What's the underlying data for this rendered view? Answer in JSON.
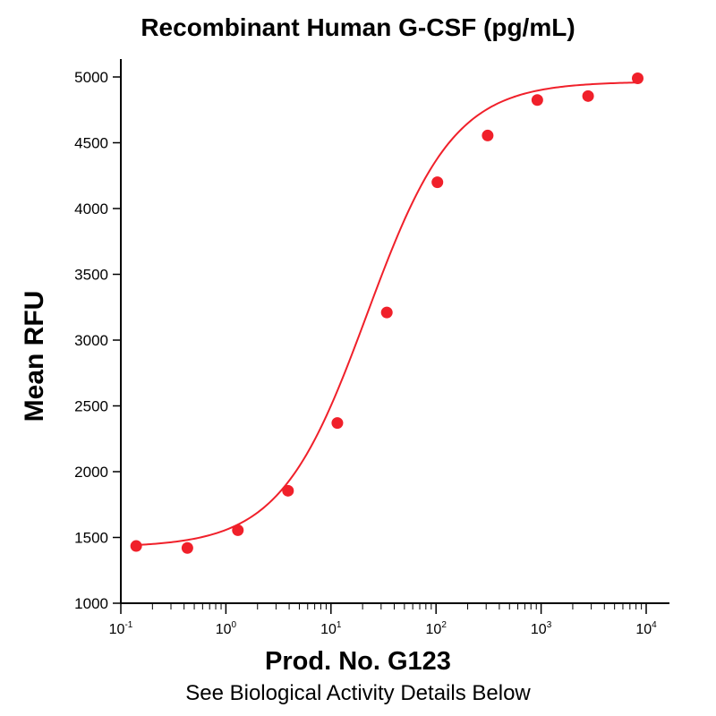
{
  "chart_data": {
    "type": "scatter",
    "title": "Recombinant Human G-CSF (pg/mL)",
    "xlabel": "Prod. No. G123",
    "ylabel": "Mean RFU",
    "subtitle": "See Biological Activity Details Below",
    "x_scale": "log",
    "xlim": [
      0.1,
      10000
    ],
    "ylim": [
      1000,
      5000
    ],
    "y_ticks": [
      1000,
      1500,
      2000,
      2500,
      3000,
      3500,
      4000,
      4500,
      5000
    ],
    "x_ticks": [
      {
        "base": "10",
        "exp": "-1"
      },
      {
        "base": "10",
        "exp": "0"
      },
      {
        "base": "10",
        "exp": "1"
      },
      {
        "base": "10",
        "exp": "2"
      },
      {
        "base": "10",
        "exp": "3"
      },
      {
        "base": "10",
        "exp": "4"
      }
    ],
    "grid": false,
    "point_color": "#f0202a",
    "line_color": "#f0202a",
    "points": [
      {
        "x": 0.14,
        "y": 1435
      },
      {
        "x": 0.43,
        "y": 1420
      },
      {
        "x": 1.3,
        "y": 1555
      },
      {
        "x": 3.9,
        "y": 1855
      },
      {
        "x": 11.5,
        "y": 2370
      },
      {
        "x": 34,
        "y": 3210
      },
      {
        "x": 103,
        "y": 4200
      },
      {
        "x": 310,
        "y": 4555
      },
      {
        "x": 920,
        "y": 4825
      },
      {
        "x": 2800,
        "y": 4855
      },
      {
        "x": 8300,
        "y": 4990
      }
    ],
    "fit": {
      "model": "4PL",
      "bottom": 1425,
      "top": 4965,
      "ec50": 22,
      "hill": 1.05
    }
  }
}
